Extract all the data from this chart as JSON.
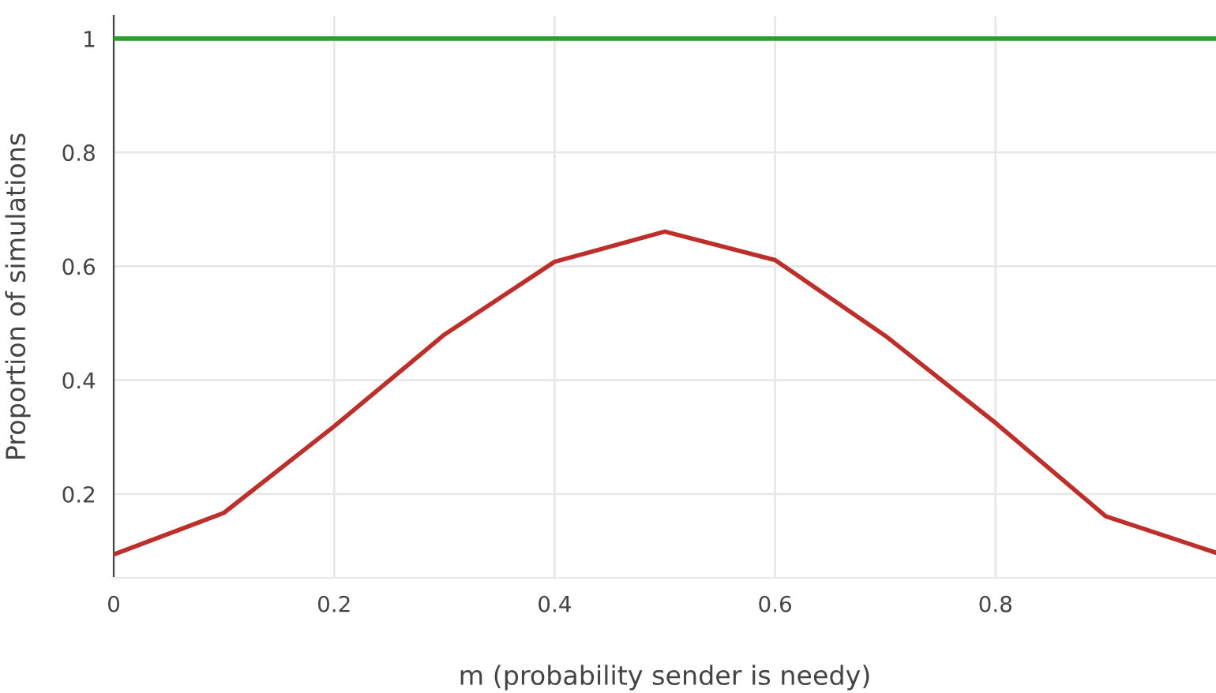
{
  "chart_data": {
    "type": "line",
    "xlabel": "m (probability sender is needy)",
    "ylabel": "Proportion of simulations",
    "x": [
      0,
      0.1,
      0.2,
      0.3,
      0.4,
      0.5,
      0.6,
      0.7,
      0.8,
      0.9,
      1.0
    ],
    "series": [
      {
        "color": "#2ca02c",
        "values": [
          1,
          1,
          1,
          1,
          1,
          1,
          1,
          1,
          1,
          1,
          1
        ]
      },
      {
        "color": "#bd2f2a",
        "values": [
          0.094,
          0.167,
          0.319,
          0.48,
          0.608,
          0.661,
          0.611,
          0.478,
          0.325,
          0.161,
          0.097
        ]
      }
    ],
    "xlim": [
      0,
      1
    ],
    "ylim": [
      0.053,
      1.04
    ],
    "xticks": [
      0,
      0.2,
      0.4,
      0.6,
      0.8
    ],
    "yticks": [
      0.2,
      0.4,
      0.6,
      0.8,
      1
    ],
    "grid": true,
    "marker": "none",
    "line_style": "solid"
  }
}
